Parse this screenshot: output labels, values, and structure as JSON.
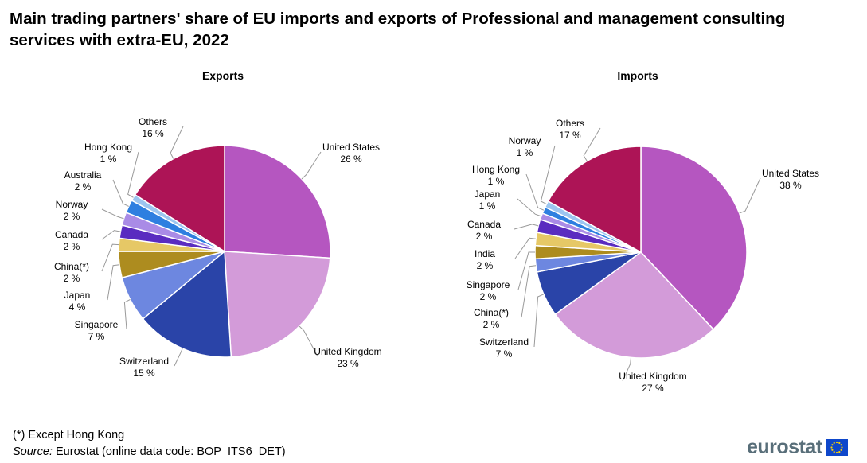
{
  "title": "Main trading partners' share of EU imports and exports of Professional and management consulting services with extra-EU, 2022",
  "footnote_except": "(*) Except Hong Kong",
  "source_label": "Source:",
  "source_text": " Eurostat (online data code: BOP_ITS6_DET)",
  "logo_text": "eurostat",
  "chart_data": [
    {
      "type": "pie",
      "title": "Exports",
      "slices": [
        {
          "name": "United States",
          "value": 26,
          "label": "26 %",
          "color": "#b556c0"
        },
        {
          "name": "United Kingdom",
          "value": 23,
          "label": "23 %",
          "color": "#d39bd9"
        },
        {
          "name": "Switzerland",
          "value": 15,
          "label": "15 %",
          "color": "#2a44a8"
        },
        {
          "name": "Singapore",
          "value": 7,
          "label": "7 %",
          "color": "#6d87e0"
        },
        {
          "name": "Japan",
          "value": 4,
          "label": "4 %",
          "color": "#ad8c1f"
        },
        {
          "name": "China(*)",
          "value": 2,
          "label": "2 %",
          "color": "#e6c866"
        },
        {
          "name": "Canada",
          "value": 2,
          "label": "2 %",
          "color": "#5a2cc0"
        },
        {
          "name": "Norway",
          "value": 2,
          "label": "2 %",
          "color": "#a98be6"
        },
        {
          "name": "Australia",
          "value": 2,
          "label": "2 %",
          "color": "#2e7fe0"
        },
        {
          "name": "Hong Kong",
          "value": 1,
          "label": "1 %",
          "color": "#9cc5f0"
        },
        {
          "name": "Others",
          "value": 16,
          "label": "16 %",
          "color": "#ad1456"
        }
      ]
    },
    {
      "type": "pie",
      "title": "Imports",
      "slices": [
        {
          "name": "United States",
          "value": 38,
          "label": "38 %",
          "color": "#b556c0"
        },
        {
          "name": "United Kingdom",
          "value": 27,
          "label": "27 %",
          "color": "#d39bd9"
        },
        {
          "name": "Switzerland",
          "value": 7,
          "label": "7 %",
          "color": "#2a44a8"
        },
        {
          "name": "China(*)",
          "value": 2,
          "label": "2 %",
          "color": "#6d87e0"
        },
        {
          "name": "Singapore",
          "value": 2,
          "label": "2 %",
          "color": "#ad8c1f"
        },
        {
          "name": "India",
          "value": 2,
          "label": "2 %",
          "color": "#e6c866"
        },
        {
          "name": "Canada",
          "value": 2,
          "label": "2 %",
          "color": "#5a2cc0"
        },
        {
          "name": "Japan",
          "value": 1,
          "label": "1 %",
          "color": "#a98be6"
        },
        {
          "name": "Hong Kong",
          "value": 1,
          "label": "1 %",
          "color": "#2e7fe0"
        },
        {
          "name": "Norway",
          "value": 1,
          "label": "1 %",
          "color": "#9cc5f0"
        },
        {
          "name": "Others",
          "value": 17,
          "label": "17 %",
          "color": "#ad1456"
        }
      ]
    }
  ]
}
